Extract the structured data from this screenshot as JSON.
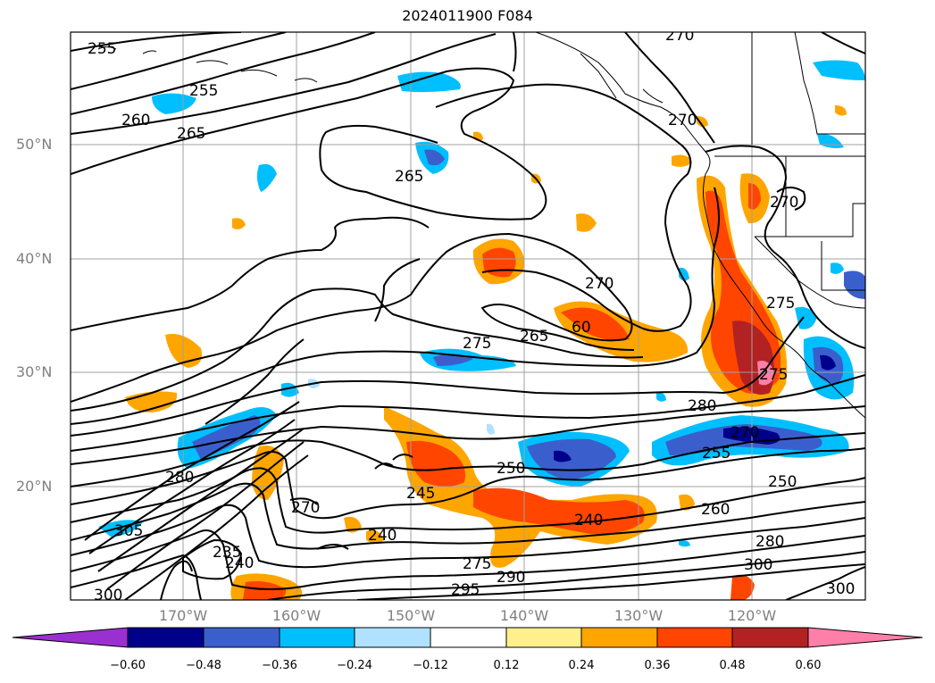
{
  "title": "2024011900 F084",
  "lat_labels": [
    "50°N",
    "40°N",
    "30°N",
    "20°N"
  ],
  "lon_labels": [
    "170°W",
    "160°W",
    "150°W",
    "140°W",
    "130°W",
    "120°W"
  ],
  "contour_labels": [
    "255",
    "255",
    "260",
    "265",
    "265",
    "270",
    "270",
    "270",
    "270",
    "265",
    "60",
    "275",
    "275",
    "280",
    "275",
    "270",
    "250",
    "255",
    "250",
    "245",
    "240",
    "240",
    "260",
    "270",
    "235",
    "240",
    "275",
    "290",
    "295",
    "300",
    "300",
    "305",
    "280",
    "280",
    "300"
  ],
  "colorbar": {
    "ticks": [
      "−0.60",
      "−0.48",
      "−0.36",
      "−0.24",
      "−0.12",
      "0.12",
      "0.24",
      "0.36",
      "0.48",
      "0.60"
    ],
    "colors": [
      "#9b30d0",
      "#00008b",
      "#3a5fcd",
      "#00bfff",
      "#b0e2ff",
      "#ffffff",
      "#fff08c",
      "#ffa500",
      "#ff4500",
      "#b22222",
      "#ff7fa8"
    ]
  },
  "colors": {
    "land_border": "#000000",
    "grid": "#a0a0a0"
  }
}
